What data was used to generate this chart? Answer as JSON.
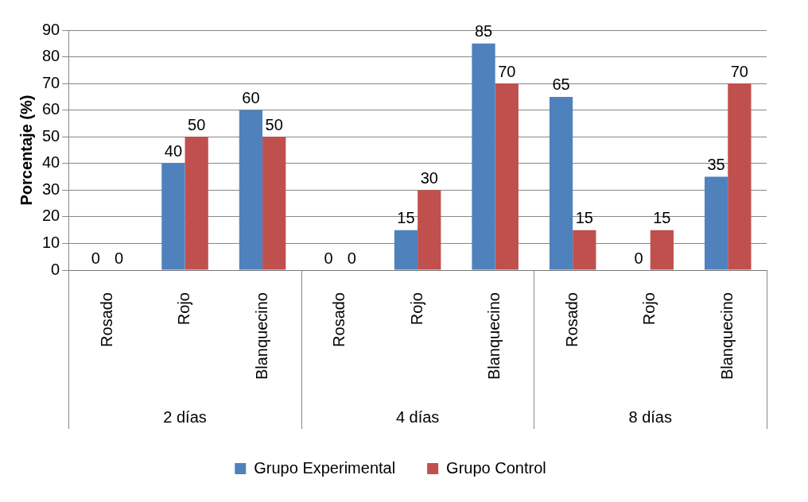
{
  "chart_data": {
    "type": "bar",
    "ylabel": "Porcentaje (%)",
    "categories": [
      "Rosado",
      "Rojo",
      "Blanquecino",
      "Rosado",
      "Rojo",
      "Blanquecino",
      "Rosado",
      "Rojo",
      "Blanquecino"
    ],
    "series": [
      {
        "name": "Grupo Experimental",
        "color": "#4f81bd",
        "values": [
          0,
          40,
          60,
          0,
          15,
          85,
          65,
          0,
          35
        ]
      },
      {
        "name": "Grupo Control",
        "color": "#c0504d",
        "values": [
          0,
          50,
          50,
          0,
          30,
          70,
          15,
          15,
          70
        ]
      }
    ],
    "annotations": [
      "2 días",
      "4 días",
      "8 días"
    ],
    "ylim": [
      0,
      90
    ],
    "yticks": [
      0,
      10,
      20,
      30,
      40,
      50,
      60,
      70,
      80,
      90
    ],
    "grid": "y",
    "legend": "bottom",
    "data_labels": true
  }
}
